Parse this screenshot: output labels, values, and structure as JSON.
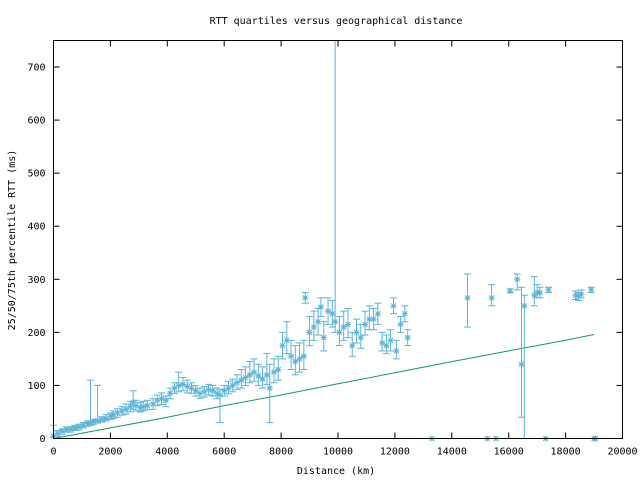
{
  "chart_data": {
    "type": "scatter",
    "title": "RTT quartiles versus geographical distance",
    "xlabel": "Distance (km)",
    "ylabel": "25/50/75th percentile RTT (ms)",
    "xlim": [
      0,
      20000
    ],
    "ylim": [
      0,
      750
    ],
    "x_ticks": [
      0,
      2000,
      4000,
      6000,
      8000,
      10000,
      12000,
      14000,
      16000,
      18000,
      20000
    ],
    "y_ticks": [
      0,
      100,
      200,
      300,
      400,
      500,
      600,
      700
    ],
    "grid": false,
    "legend": "none",
    "colors": {
      "points": "#5ab4d8",
      "reference_line": "#0f9a68",
      "axes": "#000000"
    },
    "series": [
      {
        "type": "errorbar",
        "points": [
          [
            0,
            5,
            2,
            25
          ],
          [
            150,
            10,
            4,
            15
          ],
          [
            300,
            14,
            8,
            18
          ],
          [
            450,
            17,
            12,
            22
          ],
          [
            600,
            18,
            12,
            22
          ],
          [
            750,
            20,
            15,
            25
          ],
          [
            900,
            22,
            16,
            27
          ],
          [
            1050,
            25,
            20,
            30
          ],
          [
            1200,
            28,
            23,
            33
          ],
          [
            1300,
            30,
            25,
            110
          ],
          [
            1400,
            32,
            26,
            36
          ],
          [
            1550,
            34,
            29,
            100
          ],
          [
            1700,
            36,
            31,
            41
          ],
          [
            1850,
            38,
            33,
            45
          ],
          [
            2000,
            42,
            36,
            48
          ],
          [
            2100,
            45,
            38,
            52
          ],
          [
            2250,
            48,
            40,
            56
          ],
          [
            2400,
            52,
            44,
            60
          ],
          [
            2550,
            55,
            46,
            65
          ],
          [
            2700,
            60,
            50,
            70
          ],
          [
            2800,
            68,
            55,
            90
          ],
          [
            2900,
            62,
            52,
            72
          ],
          [
            3050,
            58,
            50,
            68
          ],
          [
            3150,
            60,
            52,
            70
          ],
          [
            3300,
            62,
            54,
            72
          ],
          [
            3500,
            65,
            55,
            75
          ],
          [
            3650,
            72,
            62,
            82
          ],
          [
            3800,
            75,
            64,
            86
          ],
          [
            3950,
            72,
            60,
            80
          ],
          [
            4100,
            85,
            75,
            95
          ],
          [
            4250,
            95,
            85,
            105
          ],
          [
            4400,
            100,
            88,
            125
          ],
          [
            4550,
            102,
            90,
            115
          ],
          [
            4700,
            98,
            86,
            110
          ],
          [
            4850,
            95,
            85,
            105
          ],
          [
            5000,
            90,
            80,
            100
          ],
          [
            5150,
            85,
            76,
            95
          ],
          [
            5300,
            88,
            78,
            98
          ],
          [
            5450,
            92,
            82,
            102
          ],
          [
            5600,
            90,
            80,
            100
          ],
          [
            5750,
            85,
            75,
            95
          ],
          [
            5850,
            82,
            30,
            92
          ],
          [
            6000,
            90,
            80,
            100
          ],
          [
            6150,
            95,
            84,
            108
          ],
          [
            6300,
            100,
            88,
            112
          ],
          [
            6450,
            105,
            92,
            120
          ],
          [
            6600,
            110,
            95,
            130
          ],
          [
            6750,
            115,
            100,
            135
          ],
          [
            6900,
            120,
            105,
            145
          ],
          [
            7050,
            125,
            108,
            150
          ],
          [
            7200,
            118,
            100,
            140
          ],
          [
            7350,
            112,
            95,
            135
          ],
          [
            7500,
            120,
            102,
            160
          ],
          [
            7600,
            95,
            30,
            140
          ],
          [
            7750,
            125,
            105,
            150
          ],
          [
            7900,
            130,
            110,
            155
          ],
          [
            8050,
            175,
            150,
            200
          ],
          [
            8200,
            185,
            160,
            220
          ],
          [
            8350,
            155,
            130,
            185
          ],
          [
            8500,
            145,
            120,
            175
          ],
          [
            8650,
            150,
            125,
            180
          ],
          [
            8800,
            155,
            130,
            185
          ],
          [
            8850,
            265,
            255,
            275
          ],
          [
            9000,
            200,
            175,
            230
          ],
          [
            9150,
            210,
            185,
            240
          ],
          [
            9300,
            220,
            195,
            245
          ],
          [
            9400,
            248,
            230,
            265
          ],
          [
            9500,
            190,
            165,
            220
          ],
          [
            9650,
            240,
            215,
            265
          ],
          [
            9800,
            235,
            210,
            260
          ],
          [
            9900,
            220,
            200,
            750
          ],
          [
            10050,
            200,
            175,
            230
          ],
          [
            10200,
            210,
            185,
            240
          ],
          [
            10350,
            215,
            190,
            245
          ],
          [
            10500,
            175,
            155,
            200
          ],
          [
            10650,
            200,
            180,
            225
          ],
          [
            10800,
            190,
            170,
            215
          ],
          [
            10950,
            215,
            195,
            240
          ],
          [
            11100,
            225,
            205,
            250
          ],
          [
            11250,
            225,
            205,
            245
          ],
          [
            11400,
            235,
            215,
            255
          ],
          [
            11550,
            180,
            165,
            200
          ],
          [
            11700,
            175,
            160,
            195
          ],
          [
            11850,
            185,
            165,
            205
          ],
          [
            11950,
            250,
            235,
            265
          ],
          [
            12050,
            165,
            150,
            185
          ],
          [
            12200,
            215,
            200,
            230
          ],
          [
            12350,
            235,
            220,
            250
          ],
          [
            12450,
            190,
            175,
            205
          ],
          [
            13300,
            0,
            0,
            0
          ],
          [
            14550,
            265,
            210,
            310
          ],
          [
            15250,
            0,
            0,
            0
          ],
          [
            15400,
            265,
            250,
            290
          ],
          [
            15550,
            0,
            0,
            0
          ],
          [
            16050,
            278,
            275,
            282
          ],
          [
            16300,
            300,
            280,
            310
          ],
          [
            16450,
            140,
            40,
            285
          ],
          [
            16550,
            250,
            0,
            270
          ],
          [
            16900,
            270,
            250,
            305
          ],
          [
            17000,
            275,
            265,
            290
          ],
          [
            17100,
            275,
            265,
            285
          ],
          [
            17300,
            0,
            0,
            0
          ],
          [
            17400,
            280,
            275,
            285
          ],
          [
            18350,
            270,
            262,
            278
          ],
          [
            18450,
            268,
            260,
            275
          ],
          [
            18550,
            272,
            265,
            280
          ],
          [
            18900,
            280,
            275,
            285
          ],
          [
            19000,
            0,
            0,
            0
          ],
          [
            19050,
            0,
            0,
            0
          ]
        ]
      },
      {
        "type": "line",
        "x": [
          0,
          2000,
          4000,
          6000,
          8000,
          10000,
          12000,
          14000,
          16000,
          18000,
          19000
        ],
        "y": [
          0,
          20,
          40,
          62,
          82,
          103,
          124,
          145,
          165,
          185,
          196
        ]
      }
    ]
  }
}
